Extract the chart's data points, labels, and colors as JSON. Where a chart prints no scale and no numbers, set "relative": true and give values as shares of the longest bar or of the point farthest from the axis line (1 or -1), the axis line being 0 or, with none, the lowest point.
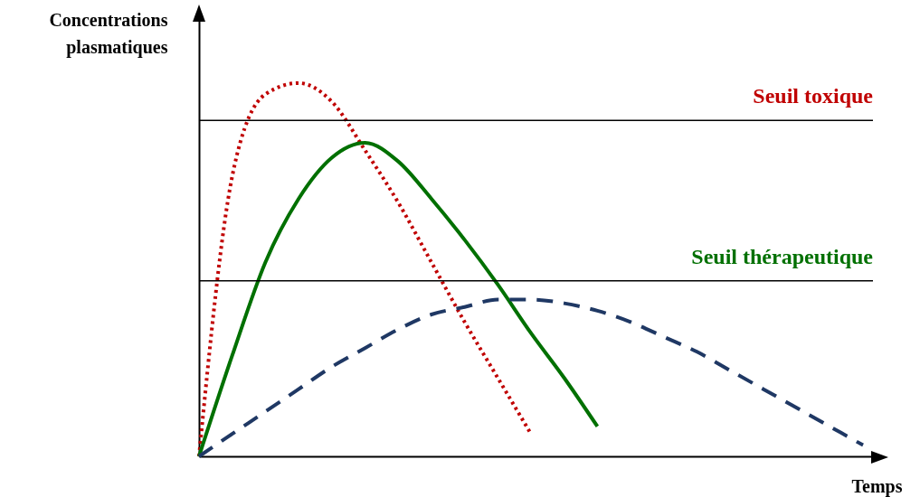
{
  "chart_data": {
    "type": "line",
    "relative": true,
    "xlabel": "Temps",
    "ylabel": "Concentrations plasmatiques",
    "categories": [
      null,
      null,
      null,
      null,
      null,
      null,
      null,
      null,
      null,
      null,
      null,
      null,
      null,
      null,
      null,
      null,
      null,
      null,
      null,
      null,
      null
    ],
    "grid": false,
    "series": [
      {
        "color": "#c00000",
        "line_style": "dotted",
        "values": [
          0,
          0.75,
          0.97,
          1,
          0.95,
          0.82,
          0.68,
          0.52,
          0.36,
          0.21,
          0.06,
          null,
          null,
          null,
          null,
          null,
          null,
          null,
          null,
          null,
          null
        ]
      },
      {
        "color": "#007000",
        "line_style": "solid",
        "values": [
          0,
          0.27,
          0.52,
          0.69,
          0.8,
          0.84,
          0.79,
          0.69,
          0.58,
          0.46,
          0.33,
          0.21,
          0.08,
          null,
          null,
          null,
          null,
          null,
          null,
          null,
          null
        ]
      },
      {
        "color": "#1f3864",
        "line_style": "dashed",
        "values": [
          0,
          0.06,
          0.12,
          0.18,
          0.24,
          0.29,
          0.34,
          0.38,
          0.4,
          0.42,
          0.42,
          0.41,
          0.39,
          0.36,
          0.32,
          0.28,
          0.23,
          0.18,
          0.13,
          0.08,
          0.03
        ]
      }
    ],
    "ref_lines": [
      {
        "axis": "y",
        "value": 0.9,
        "label": "Seuil toxique",
        "color": "#000000"
      },
      {
        "axis": "y",
        "value": 0.47,
        "label": "Seuil thérapeutique",
        "color": "#000000"
      }
    ]
  }
}
